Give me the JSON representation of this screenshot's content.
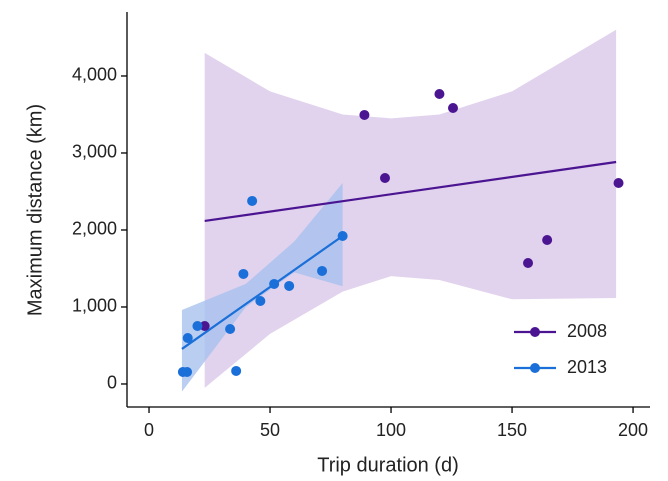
{
  "chart_data": {
    "type": "scatter",
    "x_label": "Trip duration (d)",
    "y_label": "Maximum distance (km)",
    "xlim": [
      -9.1,
      207
    ],
    "ylim": [
      -299,
      4831
    ],
    "xticks": [
      0,
      50,
      100,
      150,
      200
    ],
    "yticks": [
      0,
      {
        "value": 1000,
        "label": "1,000"
      },
      {
        "value": 2000,
        "label": "2,000"
      },
      {
        "value": 3000,
        "label": "3,000"
      },
      {
        "value": 4000,
        "label": "4,000"
      }
    ],
    "legend_position": "bottom-right",
    "series": [
      {
        "name": "2008",
        "color": "#4b1592",
        "band_color": "#d9c7e8",
        "x": [
          89,
          120,
          125.6,
          97.5,
          194,
          164.5,
          156.6,
          23
        ],
        "values": [
          3494,
          3766,
          3584,
          2675,
          2610,
          1870,
          1571,
          753
        ],
        "fit": {
          "x": [
            23,
            193
          ],
          "y": [
            2117,
            2883
          ]
        },
        "band": {
          "x": [
            23,
            50,
            80,
            100,
            120,
            150,
            193
          ],
          "upper": [
            4300,
            3800,
            3500,
            3450,
            3500,
            3800,
            4600
          ],
          "lower": [
            -50,
            650,
            1200,
            1400,
            1350,
            1100,
            1117
          ]
        }
      },
      {
        "name": "2013",
        "color": "#1a6fd8",
        "band_color": "#a8c2ee",
        "x": [
          14,
          15.7,
          16,
          20,
          33.5,
          36,
          39,
          42.6,
          46,
          51.7,
          57.9,
          71.5,
          80
        ],
        "values": [
          156,
          156,
          597,
          753,
          714,
          169,
          1429,
          2377,
          1078,
          1299,
          1273,
          1468,
          1922
        ],
        "fit": {
          "x": [
            13.6,
            80
          ],
          "y": [
            455,
            1922
          ]
        },
        "band": {
          "x": [
            13.6,
            40,
            60,
            80
          ],
          "upper": [
            960,
            1300,
            1850,
            2610
          ],
          "lower": [
            -100,
            1000,
            1450,
            1270
          ]
        }
      }
    ]
  }
}
